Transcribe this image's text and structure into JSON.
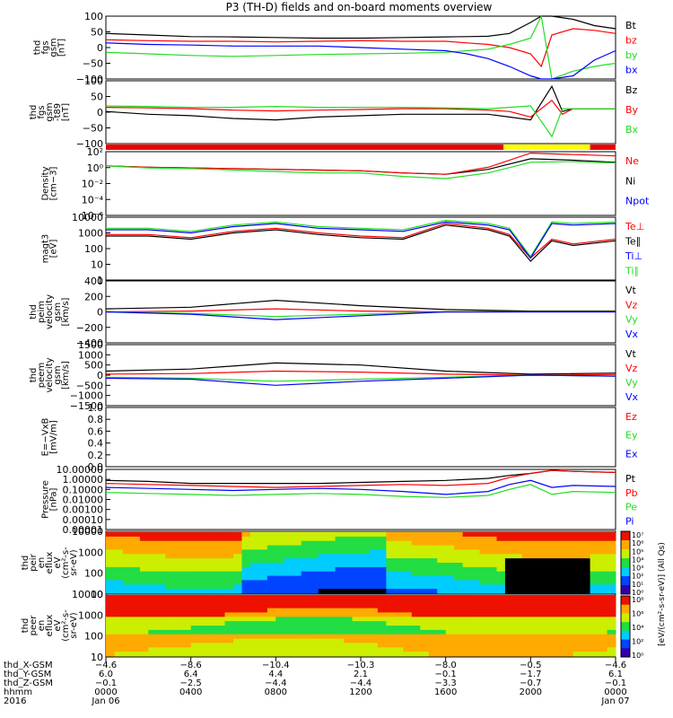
{
  "title": "P3 (TH-D) fields and on-board moments overview",
  "colors": {
    "black": "#000000",
    "red": "#ff0000",
    "green": "#22dd22",
    "blue": "#0000ff",
    "yellow": "#ffff00",
    "bar_red": "#ee0000"
  },
  "panels": [
    {
      "id": "fgs-gsm",
      "ylabel": [
        "thd",
        "fgs",
        "gsm",
        "[nT]"
      ],
      "ticks": [
        "100",
        "50",
        "0",
        "−50",
        "−100"
      ],
      "legend": [
        {
          "text": "Bt",
          "color": "black"
        },
        {
          "text": "bz",
          "color": "red"
        },
        {
          "text": "by",
          "color": "green"
        },
        {
          "text": "bx",
          "color": "blue"
        }
      ]
    },
    {
      "id": "fgs-dB",
      "ylabel": [
        "thd",
        "fgs",
        "gsm",
        "-t89",
        "[nT]"
      ],
      "ticks": [
        "100",
        "50",
        "0",
        "−50",
        "−100"
      ],
      "legend": [
        {
          "text": "Bz",
          "color": "black"
        },
        {
          "text": "By",
          "color": "red"
        },
        {
          "text": "Bx",
          "color": "green"
        }
      ]
    },
    {
      "id": "density",
      "ylabel": [
        "Density",
        "[cm−3]"
      ],
      "ticks": [
        "10²",
        "10⁰",
        "10⁻²",
        "10⁻⁴",
        "10⁻⁶"
      ],
      "legend": [
        {
          "text": "Ne",
          "color": "red"
        },
        {
          "text": "Ni",
          "color": "black"
        },
        {
          "text": "Npot",
          "color": "blue"
        }
      ]
    },
    {
      "id": "temperature",
      "ylabel": [
        "magt3",
        "[eV]"
      ],
      "ticks": [
        "10000",
        "1000",
        "100",
        "10",
        "1"
      ],
      "legend": [
        {
          "text": "Te⊥",
          "color": "red"
        },
        {
          "text": "Te∥",
          "color": "black"
        },
        {
          "text": "Ti⊥",
          "color": "blue"
        },
        {
          "text": "Ti∥",
          "color": "green"
        }
      ]
    },
    {
      "id": "ion-velocity",
      "ylabel": [
        "thd",
        "peim",
        "velocity",
        "gsm",
        "[km/s]"
      ],
      "ticks": [
        "400",
        "200",
        "0",
        "−200",
        "−400"
      ],
      "legend": [
        {
          "text": "Vt",
          "color": "black"
        },
        {
          "text": "Vz",
          "color": "red"
        },
        {
          "text": "Vy",
          "color": "green"
        },
        {
          "text": "Vx",
          "color": "blue"
        }
      ]
    },
    {
      "id": "electron-velocity",
      "ylabel": [
        "thd",
        "peem",
        "velocity",
        "gsm",
        "[km/s]"
      ],
      "ticks": [
        "1500",
        "1000",
        "500",
        "0",
        "−500",
        "−1000",
        "−1500"
      ],
      "legend": [
        {
          "text": "Vt",
          "color": "black"
        },
        {
          "text": "Vz",
          "color": "red"
        },
        {
          "text": "Vy",
          "color": "green"
        },
        {
          "text": "Vx",
          "color": "blue"
        }
      ]
    },
    {
      "id": "efield",
      "ylabel": [
        "E=−VxB",
        "[mV/m]"
      ],
      "ticks": [
        "1.0",
        "0.8",
        "0.6",
        "0.4",
        "0.2",
        "0.0"
      ],
      "legend": [
        {
          "text": "Ez",
          "color": "red"
        },
        {
          "text": "Ey",
          "color": "green"
        },
        {
          "text": "Ex",
          "color": "blue"
        }
      ]
    },
    {
      "id": "pressure",
      "ylabel": [
        "Pressure",
        "[nPa]"
      ],
      "ticks": [
        "10.00000",
        "1.00000",
        "0.10000",
        "0.01000",
        "0.00100",
        "0.00010",
        "0.00001"
      ],
      "legend": [
        {
          "text": "Pt",
          "color": "black"
        },
        {
          "text": "Pb",
          "color": "red"
        },
        {
          "text": "Pe",
          "color": "green"
        },
        {
          "text": "Pi",
          "color": "blue"
        }
      ]
    },
    {
      "id": "ion-eflux",
      "ylabel": [
        "thd",
        "peir",
        "en",
        "eflux",
        "eV",
        "(cm²-s-",
        "sr-eV)"
      ],
      "ticks": [
        "10000",
        "1000",
        "100",
        "10"
      ],
      "legend": []
    },
    {
      "id": "electron-eflux",
      "ylabel": [
        "thd",
        "peer",
        "en",
        "eflux",
        "eV",
        "(cm²-s-",
        "sr-eV)"
      ],
      "ticks": [
        "10000",
        "1000",
        "100",
        "10"
      ],
      "legend": []
    }
  ],
  "colorbar": {
    "top_ticks": [
      "10⁷",
      "10⁶",
      "10⁵",
      "10⁴",
      "10³",
      "10²",
      "10¹",
      "10⁰"
    ],
    "bottom_ticks": [
      "10⁸",
      "10⁶",
      "10⁴",
      "10²",
      "10⁰"
    ],
    "label": "[eV/(cm²-s-sr-eV)] (All Qs)"
  },
  "xaxis": {
    "rows": [
      {
        "label": "thd_X-GSM",
        "values": [
          "−4.6",
          "−8.6",
          "−10.4",
          "−10.3",
          "−8.0",
          "−0.5",
          "−4.6"
        ]
      },
      {
        "label": "thd_Y-GSM",
        "values": [
          "6.0",
          "6.4",
          "4.4",
          "2.1",
          "−0.1",
          "−1.7",
          "6.1"
        ]
      },
      {
        "label": "thd_Z-GSM",
        "values": [
          "−0.1",
          "−2.5",
          "−4.4",
          "−4.4",
          "−3.3",
          "−0.7",
          "−0.1"
        ]
      },
      {
        "label": "hhmm",
        "values": [
          "0000",
          "0400",
          "0800",
          "1200",
          "1600",
          "2000",
          "0000"
        ]
      },
      {
        "label": "2016",
        "values": [
          "Jan 06",
          "",
          "",
          "",
          "",
          "",
          "Jan 07"
        ]
      }
    ]
  },
  "chart_data": [
    {
      "type": "line",
      "panel": "fgs-gsm",
      "ylim": [
        -100,
        100
      ],
      "x_hours": [
        0,
        2,
        4,
        6,
        8,
        10,
        12,
        14,
        16,
        17,
        18,
        19,
        20,
        20.5,
        21,
        22,
        23,
        24
      ],
      "series": [
        {
          "name": "Bt",
          "values": [
            45,
            40,
            35,
            34,
            32,
            30,
            30,
            32,
            34,
            35,
            36,
            45,
            80,
            150,
            120,
            90,
            70,
            60
          ]
        },
        {
          "name": "bz",
          "values": [
            25,
            22,
            20,
            20,
            18,
            20,
            22,
            20,
            20,
            15,
            10,
            0,
            -20,
            -60,
            40,
            60,
            55,
            45
          ]
        },
        {
          "name": "by",
          "values": [
            -15,
            -20,
            -25,
            -28,
            -25,
            -22,
            -20,
            -18,
            -15,
            -10,
            -5,
            10,
            30,
            100,
            -100,
            -75,
            -60,
            -50
          ]
        },
        {
          "name": "bx",
          "values": [
            15,
            10,
            8,
            5,
            5,
            5,
            0,
            -5,
            -10,
            -20,
            -35,
            -60,
            -90,
            -100,
            -120,
            -90,
            -40,
            -10
          ]
        }
      ]
    },
    {
      "type": "line",
      "panel": "fgs-dB",
      "ylim": [
        -125,
        100
      ],
      "x_hours": [
        0,
        2,
        4,
        6,
        8,
        10,
        12,
        14,
        16,
        18,
        19,
        20,
        21,
        21.5,
        22,
        23,
        24
      ],
      "series": [
        {
          "name": "Bz",
          "values": [
            -10,
            -20,
            -25,
            -35,
            -40,
            -30,
            -25,
            -20,
            -20,
            -20,
            -30,
            -40,
            80,
            -10,
            0,
            0,
            0
          ]
        },
        {
          "name": "By",
          "values": [
            5,
            3,
            0,
            -5,
            -8,
            -5,
            -3,
            0,
            0,
            -5,
            -10,
            -30,
            30,
            -20,
            0,
            0,
            0
          ]
        },
        {
          "name": "Bx",
          "values": [
            10,
            8,
            5,
            5,
            8,
            5,
            5,
            5,
            3,
            0,
            5,
            10,
            -100,
            0,
            0,
            0,
            0
          ]
        }
      ]
    },
    {
      "type": "line",
      "panel": "density",
      "ylim_log": [
        -7,
        2
      ],
      "x_hours": [
        0,
        2,
        4,
        6,
        8,
        10,
        12,
        14,
        16,
        18,
        20,
        22,
        24
      ],
      "series": [
        {
          "name": "Ne",
          "log10_values": [
            0,
            -0.2,
            -0.3,
            -0.4,
            -0.5,
            -0.6,
            -0.7,
            -1,
            -1.2,
            -0.5,
            1,
            0.8,
            0.5
          ]
        },
        {
          "name": "Ni",
          "log10_values": [
            0,
            -0.2,
            -0.3,
            -0.4,
            -0.5,
            -0.6,
            -0.7,
            -1,
            -1.2,
            -0.2,
            1.8,
            1.6,
            1.4
          ]
        },
        {
          "name": "Npot",
          "log10_values": [
            0,
            -0.3,
            -0.4,
            -0.6,
            -0.8,
            -1,
            -1,
            -1.5,
            -1.8,
            -1,
            0.5,
            0.6,
            0.4
          ]
        }
      ]
    },
    {
      "type": "line",
      "panel": "temperature",
      "ylim_log": [
        0,
        4
      ],
      "x_hours": [
        0,
        2,
        4,
        6,
        8,
        10,
        12,
        14,
        16,
        18,
        19,
        20,
        21,
        22,
        24
      ],
      "series": [
        {
          "name": "Te⊥",
          "log10_values": [
            2.8,
            2.8,
            2.6,
            3,
            3.2,
            2.9,
            2.7,
            2.6,
            3.5,
            3.2,
            2.8,
            1.2,
            2.5,
            2.2,
            2.5
          ]
        },
        {
          "name": "Te∥",
          "log10_values": [
            2.9,
            2.9,
            2.7,
            3.1,
            3.3,
            3,
            2.8,
            2.7,
            3.6,
            3.3,
            2.9,
            1.4,
            2.6,
            2.3,
            2.6
          ]
        },
        {
          "name": "Ti⊥",
          "log10_values": [
            3.3,
            3.3,
            3.1,
            3.5,
            3.7,
            3.4,
            3.3,
            3.2,
            3.8,
            3.6,
            3.3,
            1.5,
            3.7,
            3.6,
            3.7
          ]
        },
        {
          "name": "Ti∥",
          "log10_values": [
            3.2,
            3.2,
            3,
            3.4,
            3.6,
            3.3,
            3.2,
            3.1,
            3.7,
            3.5,
            3.2,
            1.4,
            3.6,
            3.5,
            3.6
          ]
        }
      ]
    },
    {
      "type": "line",
      "panel": "ion-velocity",
      "ylim": [
        -400,
        400
      ],
      "x_hours": [
        0,
        4,
        8,
        12,
        16,
        20,
        24
      ],
      "series": [
        {
          "name": "Vt",
          "values": [
            40,
            60,
            150,
            80,
            30,
            10,
            10
          ]
        },
        {
          "name": "Vz",
          "values": [
            0,
            10,
            40,
            10,
            0,
            0,
            0
          ]
        },
        {
          "name": "Vy",
          "values": [
            0,
            -20,
            -60,
            -30,
            0,
            0,
            0
          ]
        },
        {
          "name": "Vx",
          "values": [
            0,
            -30,
            -100,
            -50,
            0,
            0,
            0
          ]
        }
      ]
    },
    {
      "type": "line",
      "panel": "electron-velocity",
      "ylim": [
        -1500,
        1500
      ],
      "x_hours": [
        0,
        4,
        8,
        12,
        16,
        20,
        24
      ],
      "series": [
        {
          "name": "Vt",
          "values": [
            200,
            300,
            600,
            500,
            200,
            50,
            100
          ]
        },
        {
          "name": "Vz",
          "values": [
            50,
            80,
            200,
            150,
            50,
            0,
            30
          ]
        },
        {
          "name": "Vy",
          "values": [
            -100,
            -150,
            -300,
            -200,
            -100,
            0,
            -50
          ]
        },
        {
          "name": "Vx",
          "values": [
            -150,
            -200,
            -500,
            -300,
            -150,
            0,
            -50
          ]
        }
      ]
    },
    {
      "type": "line",
      "panel": "pressure",
      "ylim_log": [
        -5,
        1
      ],
      "x_hours": [
        0,
        2,
        4,
        6,
        8,
        10,
        12,
        14,
        16,
        18,
        19,
        20,
        21,
        22,
        24
      ],
      "series": [
        {
          "name": "Pt",
          "log10_values": [
            -0.1,
            -0.2,
            -0.4,
            -0.4,
            -0.4,
            -0.4,
            -0.3,
            -0.2,
            -0.1,
            0.1,
            0.4,
            0.6,
            0.9,
            0.8,
            0.7
          ]
        },
        {
          "name": "Pb",
          "log10_values": [
            -0.4,
            -0.5,
            -0.6,
            -0.7,
            -0.8,
            -0.7,
            -0.6,
            -0.5,
            -0.6,
            -0.4,
            0.2,
            0.6,
            0.9,
            0.8,
            0.7
          ]
        },
        {
          "name": "Pe",
          "log10_values": [
            -1.3,
            -1.4,
            -1.5,
            -1.6,
            -1.5,
            -1.4,
            -1.5,
            -1.7,
            -1.8,
            -1.6,
            -1,
            -0.5,
            -1.5,
            -1.2,
            -1.3
          ]
        },
        {
          "name": "Pi",
          "log10_values": [
            -0.8,
            -0.9,
            -1,
            -1.1,
            -1,
            -0.9,
            -1,
            -1.2,
            -1.5,
            -1.2,
            -0.5,
            -0.1,
            -0.8,
            -0.6,
            -0.7
          ]
        }
      ]
    },
    {
      "type": "heatmap",
      "panel": "ion-eflux",
      "ylim_log": [
        0.9,
        4.3
      ],
      "x_hours": [
        0,
        4,
        8,
        12,
        16,
        20,
        24
      ]
    },
    {
      "type": "heatmap",
      "panel": "electron-eflux",
      "ylim_log": [
        0.9,
        4.3
      ],
      "x_hours": [
        0,
        4,
        8,
        12,
        16,
        20,
        24
      ]
    }
  ]
}
